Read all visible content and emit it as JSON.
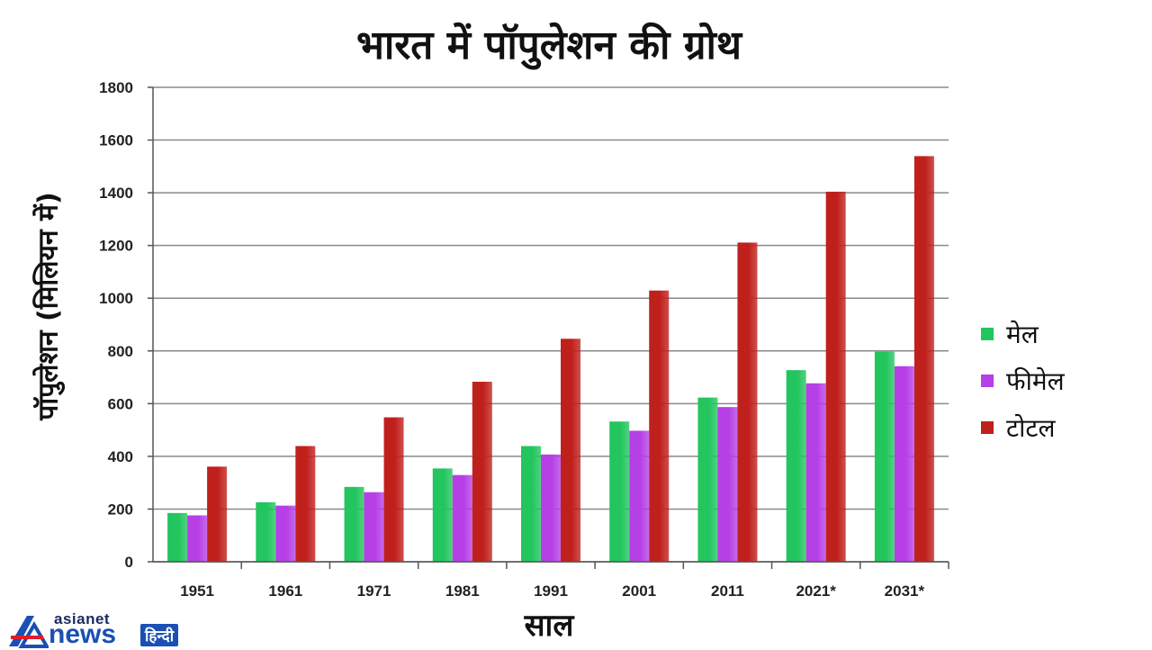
{
  "chart_data": {
    "type": "bar",
    "title": "भारत में पॉपुलेशन की ग्रोथ",
    "xlabel": "साल",
    "ylabel": "पॉपुलेशन (मिलियन में)",
    "categories": [
      "1951",
      "1961",
      "1971",
      "1981",
      "1991",
      "2001",
      "2011",
      "2021*",
      "2031*"
    ],
    "ylim": [
      0,
      1800
    ],
    "yticks": [
      0,
      200,
      400,
      600,
      800,
      1000,
      1200,
      1400,
      1600,
      1800
    ],
    "grid": true,
    "legend_position": "right",
    "series": [
      {
        "name": "मेल",
        "color": "#22c55e",
        "values": [
          185,
          226,
          284,
          354,
          439,
          532,
          623,
          727,
          797
        ]
      },
      {
        "name": "फीमेल",
        "color": "#b63fe6",
        "values": [
          176,
          213,
          264,
          329,
          407,
          497,
          587,
          677,
          742
        ]
      },
      {
        "name": "टोटल",
        "color": "#c0201c",
        "values": [
          361,
          439,
          548,
          683,
          846,
          1029,
          1211,
          1404,
          1539
        ]
      }
    ]
  },
  "brand": {
    "top": "asianet",
    "main": "news",
    "lang": "हिन्दी"
  }
}
